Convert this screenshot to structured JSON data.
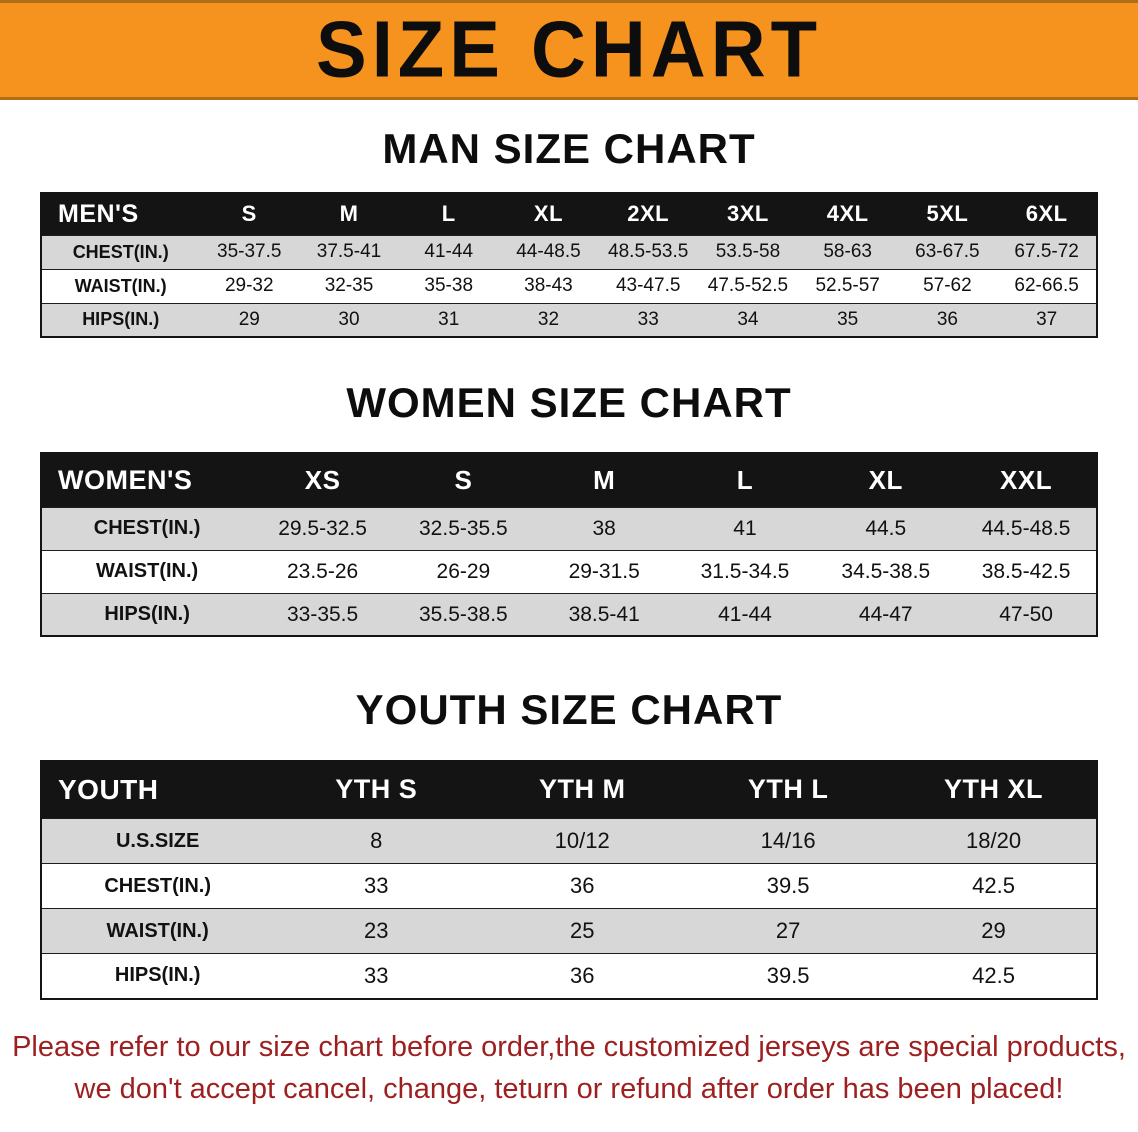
{
  "banner": {
    "title": "SIZE CHART",
    "background_color": "#F6921E"
  },
  "sections": [
    {
      "heading": "MAN SIZE CHART",
      "table": {
        "title": "MEN'S",
        "header": [
          "MEN'S",
          "S",
          "M",
          "L",
          "XL",
          "2XL",
          "3XL",
          "4XL",
          "5XL",
          "6XL"
        ],
        "rows": [
          [
            "CHEST(IN.)",
            "35-37.5",
            "37.5-41",
            "41-44",
            "44-48.5",
            "48.5-53.5",
            "53.5-58",
            "58-63",
            "63-67.5",
            "67.5-72"
          ],
          [
            "WAIST(IN.)",
            "29-32",
            "32-35",
            "35-38",
            "38-43",
            "43-47.5",
            "47.5-52.5",
            "52.5-57",
            "57-62",
            "62-66.5"
          ],
          [
            "HIPS(IN.)",
            "29",
            "30",
            "31",
            "32",
            "33",
            "34",
            "35",
            "36",
            "37"
          ]
        ]
      }
    },
    {
      "heading": "WOMEN SIZE CHART",
      "table": {
        "title": "WOMEN'S",
        "header": [
          "WOMEN'S",
          "XS",
          "S",
          "M",
          "L",
          "XL",
          "XXL"
        ],
        "rows": [
          [
            "CHEST(IN.)",
            "29.5-32.5",
            "32.5-35.5",
            "38",
            "41",
            "44.5",
            "44.5-48.5"
          ],
          [
            "WAIST(IN.)",
            "23.5-26",
            "26-29",
            "29-31.5",
            "31.5-34.5",
            "34.5-38.5",
            "38.5-42.5"
          ],
          [
            "HIPS(IN.)",
            "33-35.5",
            "35.5-38.5",
            "38.5-41",
            "41-44",
            "44-47",
            "47-50"
          ]
        ]
      }
    },
    {
      "heading": "YOUTH SIZE CHART",
      "table": {
        "title": "YOUTH",
        "header": [
          "YOUTH",
          "YTH S",
          "YTH M",
          "YTH L",
          "YTH XL"
        ],
        "rows": [
          [
            "U.S.SIZE",
            "8",
            "10/12",
            "14/16",
            "18/20"
          ],
          [
            "CHEST(IN.)",
            "33",
            "36",
            "39.5",
            "42.5"
          ],
          [
            "WAIST(IN.)",
            "23",
            "25",
            "27",
            "29"
          ],
          [
            "HIPS(IN.)",
            "33",
            "36",
            "39.5",
            "42.5"
          ]
        ]
      }
    }
  ],
  "footer": {
    "line1": "Please refer to our size chart before order,the customized jerseys are special products,",
    "line2": "we don't accept cancel, change, teturn or refund after order has been placed!",
    "text_color": "#9E1F1F"
  },
  "colors": {
    "banner_orange": "#F6921E",
    "table_header_black": "#141414",
    "row_gray": "#D7D7D7",
    "row_white": "#FFFFFF"
  }
}
